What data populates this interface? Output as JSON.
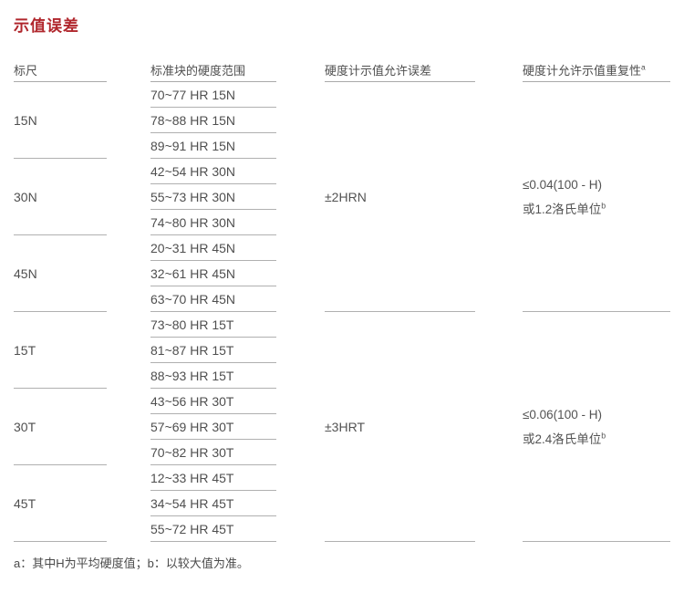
{
  "page": {
    "title": "示值误差",
    "footnote": "a：其中H为平均硬度值；b：以较大值为准。"
  },
  "colors": {
    "title_red": "#b0262c",
    "text_gray": "#4f4f4f",
    "line_gray": "#b0b0b0"
  },
  "table": {
    "headers": [
      {
        "label": "标尺",
        "sup": ""
      },
      {
        "label": "标准块的硬度范围",
        "sup": ""
      },
      {
        "label": "硬度计示值允许误差",
        "sup": ""
      },
      {
        "label": "硬度计允许示值重复性",
        "sup": "a"
      }
    ],
    "groups": [
      {
        "scale": "15N",
        "ranges": [
          "70~77 HR 15N",
          "78~88 HR 15N",
          "89~91 HR 15N"
        ]
      },
      {
        "scale": "30N",
        "ranges": [
          "42~54 HR 30N",
          "55~73 HR 30N",
          "74~80 HR 30N"
        ]
      },
      {
        "scale": "45N",
        "ranges": [
          "20~31 HR 45N",
          "32~61 HR 45N",
          "63~70 HR 45N"
        ]
      },
      {
        "scale": "15T",
        "ranges": [
          "73~80 HR 15T",
          "81~87 HR 15T",
          "88~93 HR 15T"
        ]
      },
      {
        "scale": "30T",
        "ranges": [
          "43~56 HR 30T",
          "57~69 HR 30T",
          "70~82 HR 30T"
        ]
      },
      {
        "scale": "45T",
        "ranges": [
          "12~33 HR 45T",
          "34~54 HR 45T",
          "55~72 HR 45T"
        ]
      }
    ],
    "tolerance_groups": [
      {
        "error": "±2HRN",
        "repeatability_line1": "≤0.04(100 - H)",
        "repeatability_line2": "或1.2洛氏单位",
        "repeatability_sup": "b"
      },
      {
        "error": "±3HRT",
        "repeatability_line1": "≤0.06(100 - H)",
        "repeatability_line2": "或2.4洛氏单位",
        "repeatability_sup": "b"
      }
    ]
  }
}
